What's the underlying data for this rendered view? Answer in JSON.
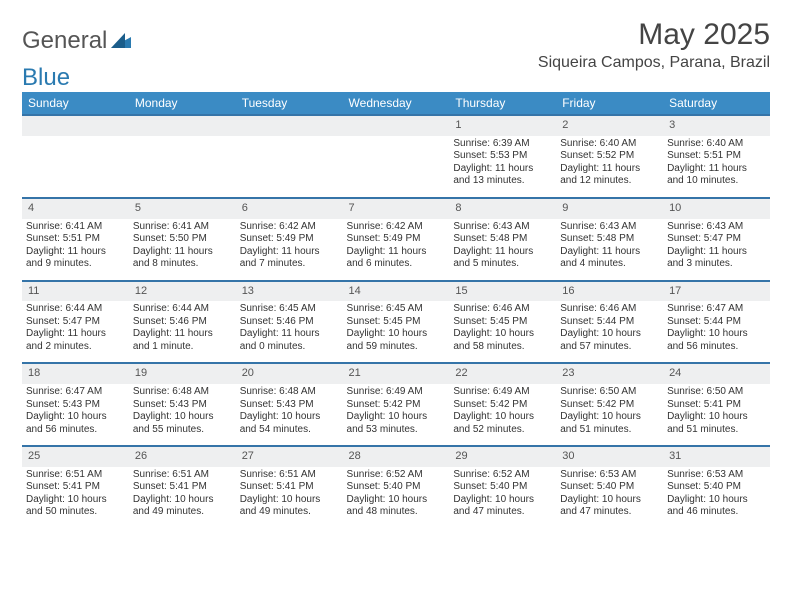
{
  "brand": {
    "part1": "General",
    "part2": "Blue"
  },
  "title": {
    "month_year": "May 2025",
    "location": "Siqueira Campos, Parana, Brazil"
  },
  "colors": {
    "header_bg": "#3b8bc4",
    "header_text": "#ffffff",
    "daynum_bg": "#eeeff0",
    "row_border": "#3574a8",
    "brand_blue": "#2a7ab0",
    "text": "#333333"
  },
  "weekdays": [
    "Sunday",
    "Monday",
    "Tuesday",
    "Wednesday",
    "Thursday",
    "Friday",
    "Saturday"
  ],
  "weeks": [
    [
      null,
      null,
      null,
      null,
      {
        "n": "1",
        "sunrise": "Sunrise: 6:39 AM",
        "sunset": "Sunset: 5:53 PM",
        "day1": "Daylight: 11 hours",
        "day2": "and 13 minutes."
      },
      {
        "n": "2",
        "sunrise": "Sunrise: 6:40 AM",
        "sunset": "Sunset: 5:52 PM",
        "day1": "Daylight: 11 hours",
        "day2": "and 12 minutes."
      },
      {
        "n": "3",
        "sunrise": "Sunrise: 6:40 AM",
        "sunset": "Sunset: 5:51 PM",
        "day1": "Daylight: 11 hours",
        "day2": "and 10 minutes."
      }
    ],
    [
      {
        "n": "4",
        "sunrise": "Sunrise: 6:41 AM",
        "sunset": "Sunset: 5:51 PM",
        "day1": "Daylight: 11 hours",
        "day2": "and 9 minutes."
      },
      {
        "n": "5",
        "sunrise": "Sunrise: 6:41 AM",
        "sunset": "Sunset: 5:50 PM",
        "day1": "Daylight: 11 hours",
        "day2": "and 8 minutes."
      },
      {
        "n": "6",
        "sunrise": "Sunrise: 6:42 AM",
        "sunset": "Sunset: 5:49 PM",
        "day1": "Daylight: 11 hours",
        "day2": "and 7 minutes."
      },
      {
        "n": "7",
        "sunrise": "Sunrise: 6:42 AM",
        "sunset": "Sunset: 5:49 PM",
        "day1": "Daylight: 11 hours",
        "day2": "and 6 minutes."
      },
      {
        "n": "8",
        "sunrise": "Sunrise: 6:43 AM",
        "sunset": "Sunset: 5:48 PM",
        "day1": "Daylight: 11 hours",
        "day2": "and 5 minutes."
      },
      {
        "n": "9",
        "sunrise": "Sunrise: 6:43 AM",
        "sunset": "Sunset: 5:48 PM",
        "day1": "Daylight: 11 hours",
        "day2": "and 4 minutes."
      },
      {
        "n": "10",
        "sunrise": "Sunrise: 6:43 AM",
        "sunset": "Sunset: 5:47 PM",
        "day1": "Daylight: 11 hours",
        "day2": "and 3 minutes."
      }
    ],
    [
      {
        "n": "11",
        "sunrise": "Sunrise: 6:44 AM",
        "sunset": "Sunset: 5:47 PM",
        "day1": "Daylight: 11 hours",
        "day2": "and 2 minutes."
      },
      {
        "n": "12",
        "sunrise": "Sunrise: 6:44 AM",
        "sunset": "Sunset: 5:46 PM",
        "day1": "Daylight: 11 hours",
        "day2": "and 1 minute."
      },
      {
        "n": "13",
        "sunrise": "Sunrise: 6:45 AM",
        "sunset": "Sunset: 5:46 PM",
        "day1": "Daylight: 11 hours",
        "day2": "and 0 minutes."
      },
      {
        "n": "14",
        "sunrise": "Sunrise: 6:45 AM",
        "sunset": "Sunset: 5:45 PM",
        "day1": "Daylight: 10 hours",
        "day2": "and 59 minutes."
      },
      {
        "n": "15",
        "sunrise": "Sunrise: 6:46 AM",
        "sunset": "Sunset: 5:45 PM",
        "day1": "Daylight: 10 hours",
        "day2": "and 58 minutes."
      },
      {
        "n": "16",
        "sunrise": "Sunrise: 6:46 AM",
        "sunset": "Sunset: 5:44 PM",
        "day1": "Daylight: 10 hours",
        "day2": "and 57 minutes."
      },
      {
        "n": "17",
        "sunrise": "Sunrise: 6:47 AM",
        "sunset": "Sunset: 5:44 PM",
        "day1": "Daylight: 10 hours",
        "day2": "and 56 minutes."
      }
    ],
    [
      {
        "n": "18",
        "sunrise": "Sunrise: 6:47 AM",
        "sunset": "Sunset: 5:43 PM",
        "day1": "Daylight: 10 hours",
        "day2": "and 56 minutes."
      },
      {
        "n": "19",
        "sunrise": "Sunrise: 6:48 AM",
        "sunset": "Sunset: 5:43 PM",
        "day1": "Daylight: 10 hours",
        "day2": "and 55 minutes."
      },
      {
        "n": "20",
        "sunrise": "Sunrise: 6:48 AM",
        "sunset": "Sunset: 5:43 PM",
        "day1": "Daylight: 10 hours",
        "day2": "and 54 minutes."
      },
      {
        "n": "21",
        "sunrise": "Sunrise: 6:49 AM",
        "sunset": "Sunset: 5:42 PM",
        "day1": "Daylight: 10 hours",
        "day2": "and 53 minutes."
      },
      {
        "n": "22",
        "sunrise": "Sunrise: 6:49 AM",
        "sunset": "Sunset: 5:42 PM",
        "day1": "Daylight: 10 hours",
        "day2": "and 52 minutes."
      },
      {
        "n": "23",
        "sunrise": "Sunrise: 6:50 AM",
        "sunset": "Sunset: 5:42 PM",
        "day1": "Daylight: 10 hours",
        "day2": "and 51 minutes."
      },
      {
        "n": "24",
        "sunrise": "Sunrise: 6:50 AM",
        "sunset": "Sunset: 5:41 PM",
        "day1": "Daylight: 10 hours",
        "day2": "and 51 minutes."
      }
    ],
    [
      {
        "n": "25",
        "sunrise": "Sunrise: 6:51 AM",
        "sunset": "Sunset: 5:41 PM",
        "day1": "Daylight: 10 hours",
        "day2": "and 50 minutes."
      },
      {
        "n": "26",
        "sunrise": "Sunrise: 6:51 AM",
        "sunset": "Sunset: 5:41 PM",
        "day1": "Daylight: 10 hours",
        "day2": "and 49 minutes."
      },
      {
        "n": "27",
        "sunrise": "Sunrise: 6:51 AM",
        "sunset": "Sunset: 5:41 PM",
        "day1": "Daylight: 10 hours",
        "day2": "and 49 minutes."
      },
      {
        "n": "28",
        "sunrise": "Sunrise: 6:52 AM",
        "sunset": "Sunset: 5:40 PM",
        "day1": "Daylight: 10 hours",
        "day2": "and 48 minutes."
      },
      {
        "n": "29",
        "sunrise": "Sunrise: 6:52 AM",
        "sunset": "Sunset: 5:40 PM",
        "day1": "Daylight: 10 hours",
        "day2": "and 47 minutes."
      },
      {
        "n": "30",
        "sunrise": "Sunrise: 6:53 AM",
        "sunset": "Sunset: 5:40 PM",
        "day1": "Daylight: 10 hours",
        "day2": "and 47 minutes."
      },
      {
        "n": "31",
        "sunrise": "Sunrise: 6:53 AM",
        "sunset": "Sunset: 5:40 PM",
        "day1": "Daylight: 10 hours",
        "day2": "and 46 minutes."
      }
    ]
  ]
}
